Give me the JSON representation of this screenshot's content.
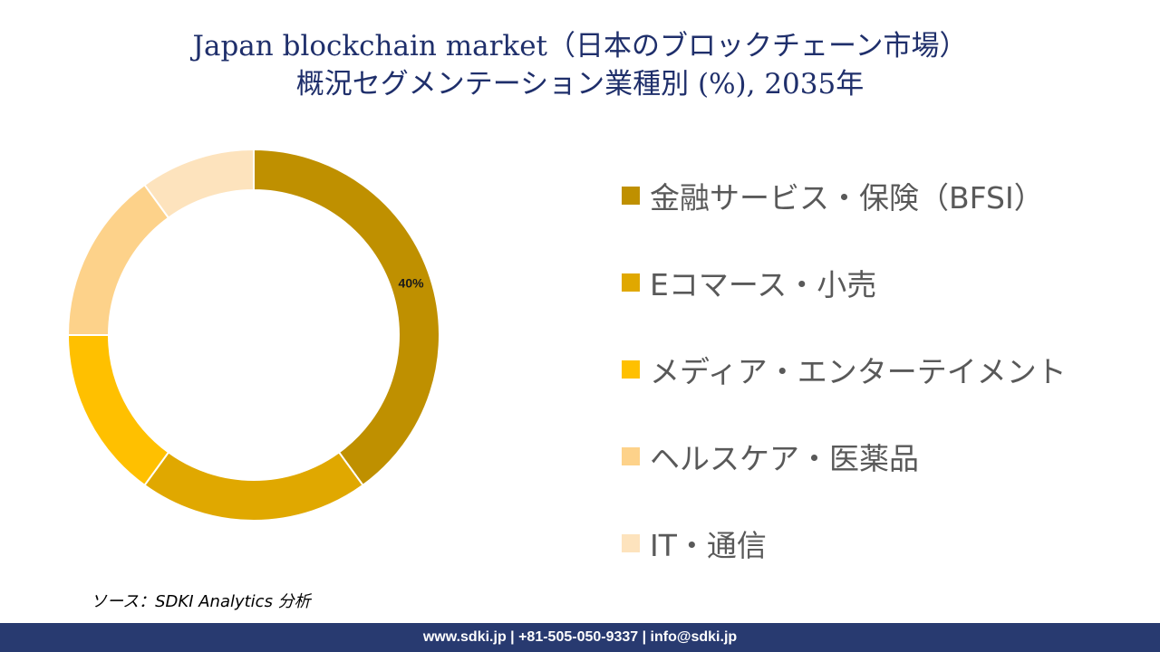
{
  "title": {
    "line1": "Japan blockchain market（日本のブロックチェーン市場）",
    "line2": "概況セグメンテーション業種別 (%), 2035年"
  },
  "chart_data": {
    "type": "pie",
    "style": "donut",
    "categories": [
      "金融サービス・保険（BFSI）",
      "Eコマース・小売",
      "メディア・エンターテイメント",
      "ヘルスケア・医薬品",
      "IT・通信"
    ],
    "values": [
      40,
      20,
      15,
      15,
      10
    ],
    "colors": [
      "#bf9000",
      "#e0a800",
      "#ffc000",
      "#fdd28a",
      "#fde3bd"
    ],
    "data_labels": [
      "40%",
      "",
      "",
      "",
      ""
    ],
    "legend_position": "right"
  },
  "source": "ソース：SDKI Analytics 分析",
  "footer": "www.sdki.jp | +81-505-050-9337 | info@sdki.jp"
}
